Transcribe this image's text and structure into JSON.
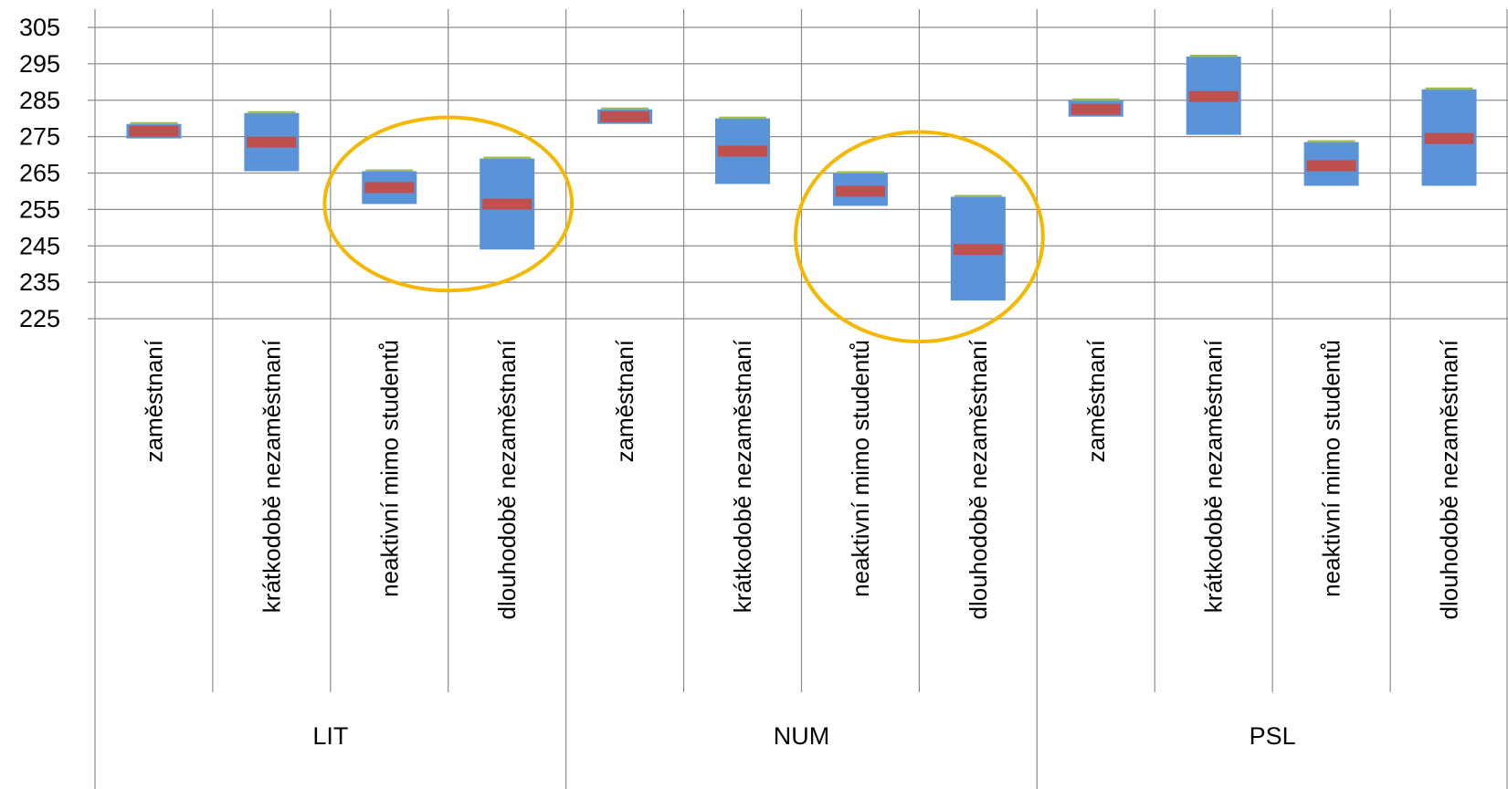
{
  "chart_data": {
    "type": "box",
    "ylim": [
      225,
      305
    ],
    "yticks": [
      225,
      235,
      245,
      255,
      265,
      275,
      285,
      295,
      305
    ],
    "grid": true,
    "legend": "none",
    "groups": [
      {
        "label": "LIT",
        "categories": [
          "zaměstnaní",
          "krátkodobě nezaměstnaní",
          "neaktivní mimo studentů",
          "dlouhodobě nezaměstnaní"
        ],
        "low": [
          274.5,
          265.5,
          256.5,
          244
        ],
        "high": [
          278.5,
          281.5,
          265.5,
          269
        ],
        "mean": [
          276.5,
          273.5,
          261,
          256.5
        ]
      },
      {
        "label": "NUM",
        "categories": [
          "zaměstnaní",
          "krátkodobě nezaměstnaní",
          "neaktivní mimo studentů",
          "dlouhodobě nezaměstnaní"
        ],
        "low": [
          278.5,
          262,
          256,
          230
        ],
        "high": [
          282.5,
          280,
          265,
          258.5
        ],
        "mean": [
          280.5,
          271,
          260,
          244
        ]
      },
      {
        "label": "PSL",
        "categories": [
          "zaměstnaní",
          "krátkodobě nezaměstnaní",
          "neaktivní mimo studentů",
          "dlouhodobě nezaměstnaní"
        ],
        "low": [
          280.5,
          275.5,
          261.5,
          261.5
        ],
        "high": [
          285,
          297,
          273.5,
          288
        ],
        "mean": [
          282.5,
          286,
          267,
          274.5
        ]
      }
    ],
    "highlighted": [
      {
        "group": "LIT",
        "categories": [
          "neaktivní mimo studentů",
          "dlouhodobě nezaměstnaní"
        ]
      },
      {
        "group": "NUM",
        "categories": [
          "neaktivní mimo studentů",
          "dlouhodobě nezaměstnaní"
        ]
      }
    ],
    "colors": {
      "range": "#5b93d9",
      "mean": "#c0504d",
      "high_marker": "#9bbb59",
      "highlight": "#f5b800",
      "grid": "#8c8c8c"
    }
  }
}
